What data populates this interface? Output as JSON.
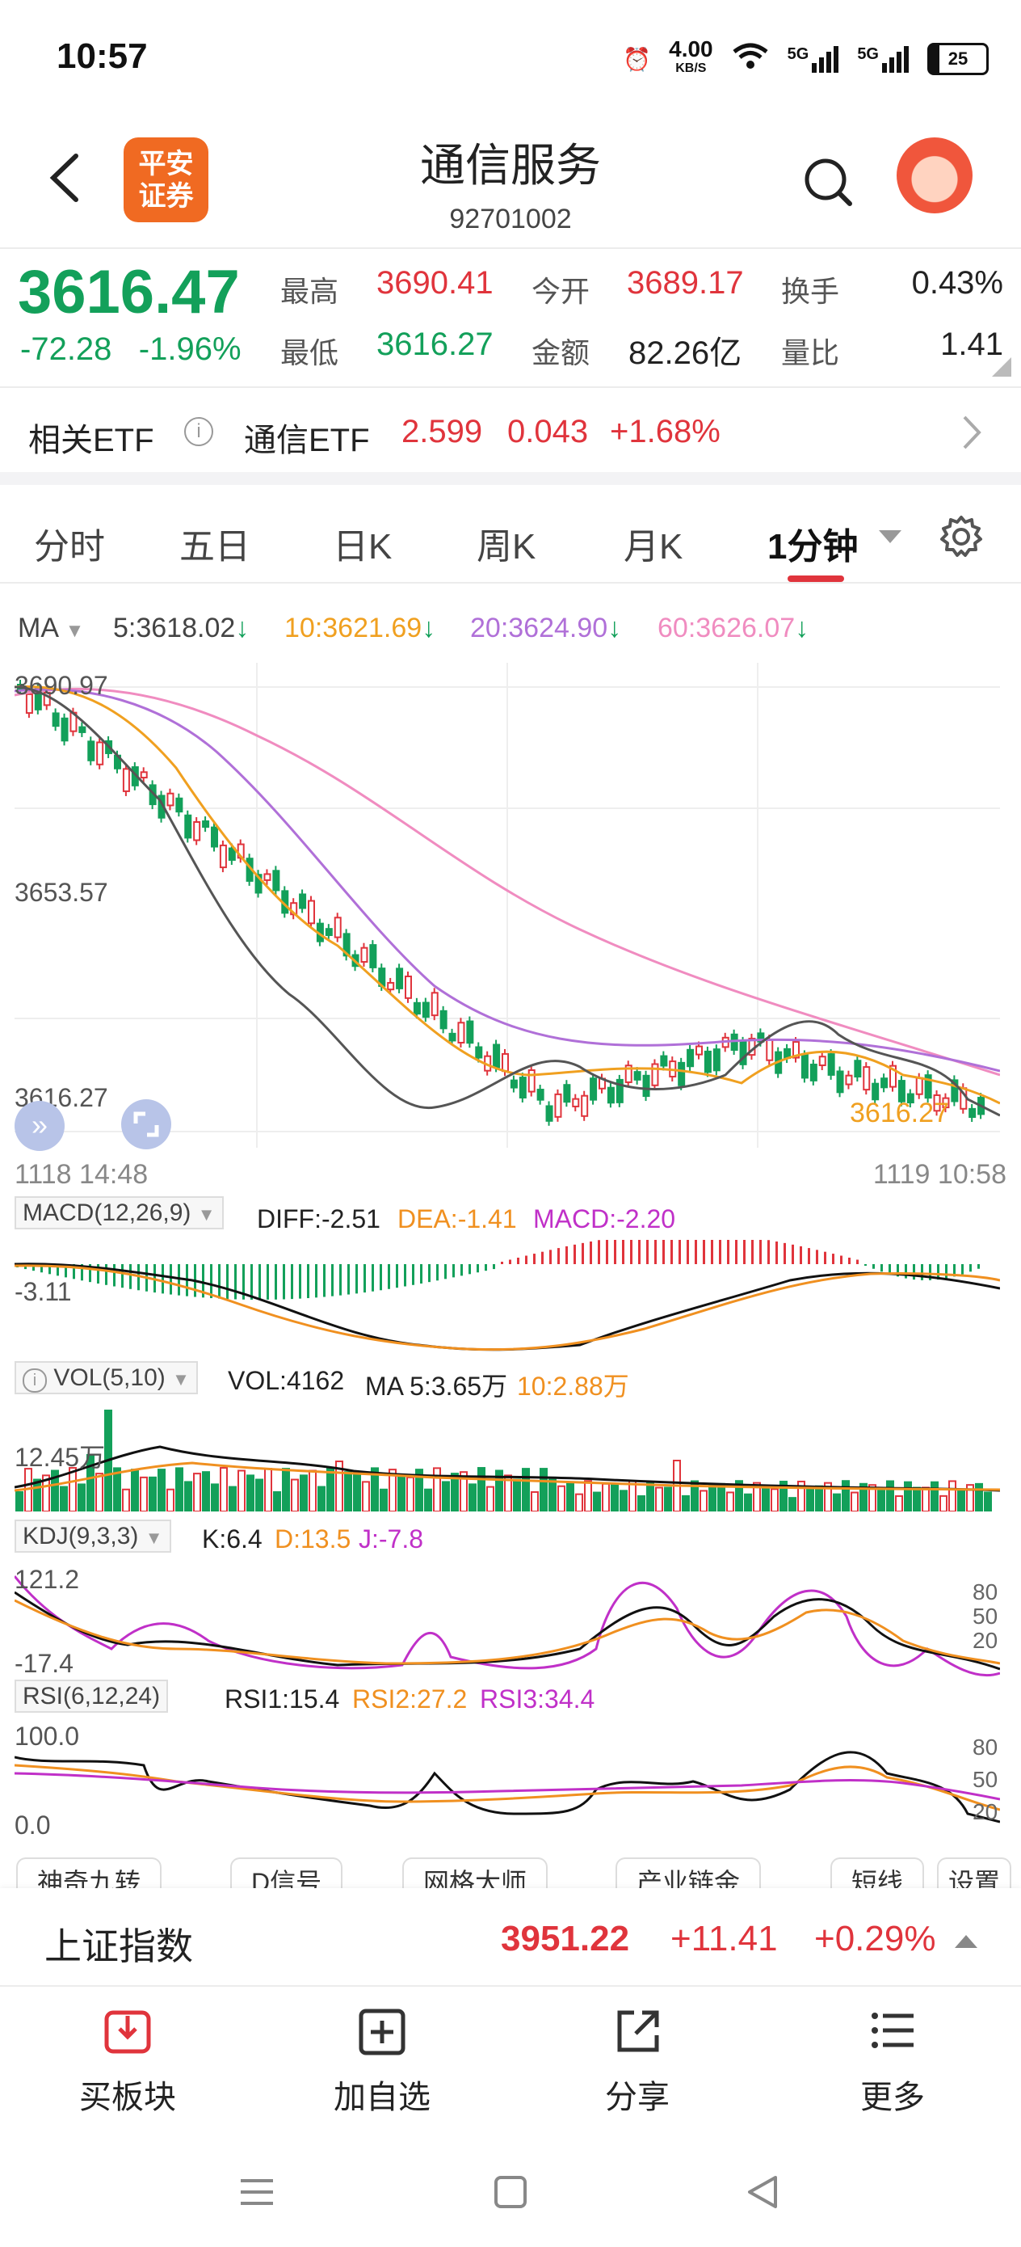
{
  "status": {
    "time": "10:57",
    "speed": "4.00",
    "speed_unit": "KB/S",
    "battery": "25",
    "net1": "5G",
    "net2": "5G"
  },
  "header": {
    "logo_line1": "平安",
    "logo_line2": "证券",
    "title": "通信服务",
    "code": "92701002"
  },
  "quote": {
    "price": "3616.47",
    "change": "-72.28",
    "change_pct": "-1.96%",
    "high_label": "最高",
    "high": "3690.41",
    "open_label": "今开",
    "open": "3689.17",
    "turnover_label": "换手",
    "turnover": "0.43%",
    "low_label": "最低",
    "low": "3616.27",
    "amount_label": "金额",
    "amount": "82.26亿",
    "ratio_label": "量比",
    "ratio": "1.41"
  },
  "etf": {
    "label": "相关ETF",
    "name": "通信ETF",
    "price": "2.599",
    "change": "0.043",
    "pct": "+1.68%"
  },
  "tabs": [
    "分时",
    "五日",
    "日K",
    "周K",
    "月K",
    "1分钟"
  ],
  "ma": {
    "label": "MA",
    "ma5": "5:3618.02",
    "ma10": "10:3621.69",
    "ma20": "20:3624.90",
    "ma60": "60:3626.07"
  },
  "chart_labels": {
    "y_top": "3690.97",
    "y_mid": "3653.57",
    "y_low": "3616.27",
    "low_marker": "3616.27",
    "time_start": "1118 14:48",
    "time_end": "1119 10:58"
  },
  "macd": {
    "label": "MACD(12,26,9)",
    "diff": "DIFF:-2.51",
    "dea": "DEA:-1.41",
    "macd": "MACD:-2.20",
    "axis": "-3.11"
  },
  "vol": {
    "label": "VOL(5,10)",
    "vol": "VOL:4162",
    "ma5": "MA 5:3.65万",
    "ma10": "10:2.88万",
    "axis": "12.45万"
  },
  "kdj": {
    "label": "KDJ(9,3,3)",
    "k": "K:6.4",
    "d": "D:13.5",
    "j": "J:-7.8",
    "axis_top": "121.2",
    "axis_bottom": "-17.4",
    "lv80": "80",
    "lv50": "50",
    "lv20": "20"
  },
  "rsi": {
    "label": "RSI(6,12,24)",
    "r1": "RSI1:15.4",
    "r2": "RSI2:27.2",
    "r3": "RSI3:34.4",
    "axis_top": "100.0",
    "axis_bottom": "0.0",
    "lv80": "80",
    "lv50": "50",
    "lv20": "20"
  },
  "chips": [
    "神奇九转",
    "D信号",
    "网格大师",
    "产业链金",
    "短线",
    "设置"
  ],
  "index": {
    "name": "上证指数",
    "value": "3951.22",
    "change": "+11.41",
    "pct": "+0.29%"
  },
  "toolbar": [
    "买板块",
    "加自选",
    "分享",
    "更多"
  ],
  "colors": {
    "up": "#e0343c",
    "down": "#13a05a",
    "ma5": "#555555",
    "ma10": "#f0a020",
    "ma20": "#b070d8",
    "ma60": "#f08cc0",
    "dea": "#f09020",
    "kdj_j": "#c030c8"
  }
}
